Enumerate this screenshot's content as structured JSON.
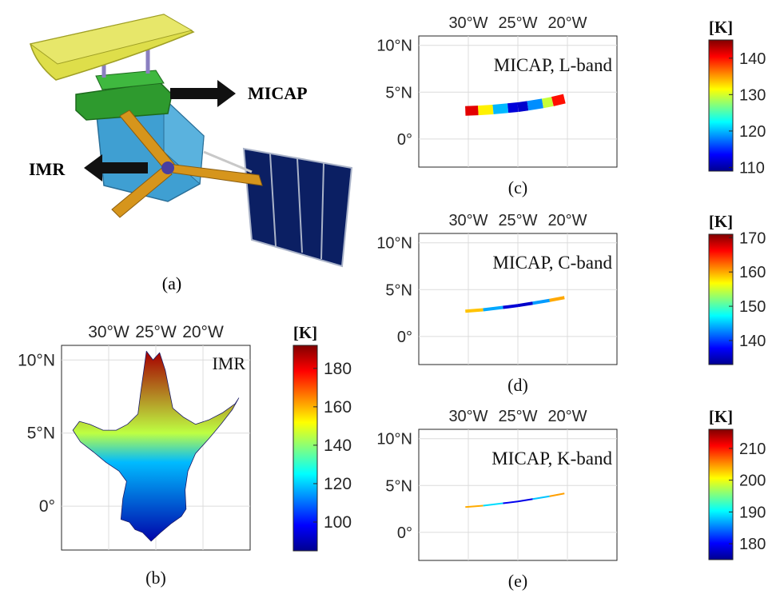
{
  "colors": {
    "jet": [
      "#00008f",
      "#0000ff",
      "#0080ff",
      "#00ffff",
      "#80ff80",
      "#ffff00",
      "#ff8000",
      "#ff0000",
      "#800000"
    ],
    "antenna_dish": "#dede4a",
    "deck_green": "#2e9a2e",
    "bus_blue": "#3f9fd2",
    "boom_orange": "#d6951c",
    "solar_panel": "#0b1f63",
    "arrow": "#111111"
  },
  "panel_a": {
    "caption": "(a)",
    "labels": {
      "micap": "MICAP",
      "imr": "IMR"
    },
    "icons": [
      "satellite-icon"
    ]
  },
  "chart_data": [
    {
      "id": "b",
      "caption": "(b)",
      "type": "heatmap",
      "annotation": "IMR",
      "colorbar_title": "[K]",
      "x_ticks": [
        "30°W",
        "25°W",
        "20°W"
      ],
      "x_tick_values": [
        -30,
        -25,
        -20
      ],
      "y_ticks": [
        "10°N",
        "5°N",
        "0°"
      ],
      "y_tick_values": [
        10,
        5,
        0
      ],
      "xlim": [
        -35,
        -15
      ],
      "ylim": [
        -3,
        11
      ],
      "clim": [
        85,
        192
      ],
      "colorbar_ticks": [
        100,
        120,
        140,
        160,
        180
      ],
      "grid": true,
      "footprint_outline": [
        [
          -25.5,
          -2.4
        ],
        [
          -26.4,
          -1.8
        ],
        [
          -27.2,
          -1.6
        ],
        [
          -27.8,
          -1.1
        ],
        [
          -28.7,
          -0.9
        ],
        [
          -28.5,
          0.5
        ],
        [
          -28.1,
          1.7
        ],
        [
          -28.9,
          2.4
        ],
        [
          -30.3,
          3.0
        ],
        [
          -31.6,
          3.7
        ],
        [
          -33.0,
          4.4
        ],
        [
          -33.8,
          5.2
        ],
        [
          -33.1,
          5.8
        ],
        [
          -32.0,
          5.6
        ],
        [
          -30.6,
          5.2
        ],
        [
          -29.2,
          5.2
        ],
        [
          -28.0,
          5.6
        ],
        [
          -26.9,
          6.3
        ],
        [
          -26.6,
          7.8
        ],
        [
          -26.3,
          9.2
        ],
        [
          -26.0,
          10.6
        ],
        [
          -25.3,
          10.0
        ],
        [
          -24.6,
          10.5
        ],
        [
          -24.0,
          9.3
        ],
        [
          -23.6,
          8.0
        ],
        [
          -23.2,
          6.7
        ],
        [
          -22.1,
          6.1
        ],
        [
          -20.8,
          5.6
        ],
        [
          -19.4,
          5.9
        ],
        [
          -17.9,
          6.4
        ],
        [
          -16.6,
          7.0
        ],
        [
          -16.2,
          7.4
        ],
        [
          -16.9,
          6.6
        ],
        [
          -18.1,
          5.6
        ],
        [
          -19.4,
          4.6
        ],
        [
          -20.8,
          3.6
        ],
        [
          -21.6,
          2.4
        ],
        [
          -21.9,
          1.1
        ],
        [
          -21.8,
          -0.2
        ],
        [
          -22.3,
          -0.7
        ],
        [
          -23.4,
          -1.2
        ],
        [
          -24.5,
          -1.8
        ],
        [
          -25.5,
          -2.4
        ]
      ],
      "value_range_by_latitude": [
        {
          "lat": -2.5,
          "value": 88
        },
        {
          "lat": 3,
          "value": 118
        },
        {
          "lat": 5,
          "value": 145
        },
        {
          "lat": 10.5,
          "value": 188
        }
      ]
    },
    {
      "id": "c",
      "caption": "(c)",
      "type": "line",
      "annotation": "MICAP, L-band",
      "colorbar_title": "[K]",
      "x_ticks": [
        "30°W",
        "25°W",
        "20°W"
      ],
      "x_tick_values": [
        -30,
        -25,
        -20
      ],
      "y_ticks": [
        "10°N",
        "5°N",
        "0°"
      ],
      "y_tick_values": [
        10,
        5,
        0
      ],
      "xlim": [
        -35,
        -15
      ],
      "ylim": [
        -3,
        11
      ],
      "clim": [
        109,
        145
      ],
      "colorbar_ticks": [
        110,
        120,
        130,
        140
      ],
      "grid": true,
      "swath": [
        {
          "lon": -30.3,
          "lat": 3.0,
          "value": 145
        },
        {
          "lon": -29.0,
          "lat": 3.05,
          "value": 138
        },
        {
          "lon": -27.5,
          "lat": 3.15,
          "value": 126
        },
        {
          "lon": -26.0,
          "lat": 3.3,
          "value": 114
        },
        {
          "lon": -25.0,
          "lat": 3.4,
          "value": 110
        },
        {
          "lon": -24.0,
          "lat": 3.55,
          "value": 113
        },
        {
          "lon": -22.5,
          "lat": 3.8,
          "value": 124
        },
        {
          "lon": -21.5,
          "lat": 4.0,
          "value": 135
        },
        {
          "lon": -20.3,
          "lat": 4.3,
          "value": 145
        }
      ]
    },
    {
      "id": "d",
      "caption": "(d)",
      "type": "line",
      "annotation": "MICAP, C-band",
      "colorbar_title": "[K]",
      "x_ticks": [
        "30°W",
        "25°W",
        "20°W"
      ],
      "x_tick_values": [
        -30,
        -25,
        -20
      ],
      "y_ticks": [
        "10°N",
        "5°N",
        "0°"
      ],
      "y_tick_values": [
        10,
        5,
        0
      ],
      "xlim": [
        -35,
        -15
      ],
      "ylim": [
        -3,
        11
      ],
      "clim": [
        133,
        171
      ],
      "colorbar_ticks": [
        140,
        150,
        160,
        170
      ],
      "grid": true,
      "swath": [
        {
          "lon": -30.3,
          "lat": 2.7,
          "value": 168
        },
        {
          "lon": -28.5,
          "lat": 2.85,
          "value": 150
        },
        {
          "lon": -26.5,
          "lat": 3.1,
          "value": 138
        },
        {
          "lon": -25.0,
          "lat": 3.3,
          "value": 134
        },
        {
          "lon": -23.5,
          "lat": 3.55,
          "value": 137
        },
        {
          "lon": -21.8,
          "lat": 3.85,
          "value": 150
        },
        {
          "lon": -20.3,
          "lat": 4.15,
          "value": 170
        }
      ]
    },
    {
      "id": "e",
      "caption": "(e)",
      "type": "line",
      "annotation": "MICAP, K-band",
      "colorbar_title": "[K]",
      "x_ticks": [
        "30°W",
        "25°W",
        "20°W"
      ],
      "x_tick_values": [
        -30,
        -25,
        -20
      ],
      "y_ticks": [
        "10°N",
        "5°N",
        "0°"
      ],
      "y_tick_values": [
        10,
        5,
        0
      ],
      "xlim": [
        -35,
        -15
      ],
      "ylim": [
        -3,
        11
      ],
      "clim": [
        175,
        216
      ],
      "colorbar_ticks": [
        180,
        190,
        200,
        210
      ],
      "grid": true,
      "swath": [
        {
          "lon": -30.3,
          "lat": 2.7,
          "value": 212
        },
        {
          "lon": -28.5,
          "lat": 2.85,
          "value": 196
        },
        {
          "lon": -26.5,
          "lat": 3.1,
          "value": 182
        },
        {
          "lon": -25.0,
          "lat": 3.3,
          "value": 177
        },
        {
          "lon": -23.5,
          "lat": 3.55,
          "value": 181
        },
        {
          "lon": -21.8,
          "lat": 3.85,
          "value": 195
        },
        {
          "lon": -20.3,
          "lat": 4.15,
          "value": 214
        }
      ]
    }
  ]
}
